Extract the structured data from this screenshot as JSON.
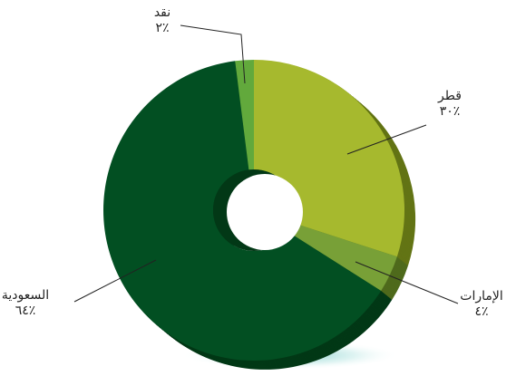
{
  "chart_data": {
    "type": "pie",
    "variant": "3d-donut",
    "categories": [
      "قطر",
      "الإمارات",
      "السعودية",
      "نقد"
    ],
    "values": [
      30,
      4,
      64,
      2
    ],
    "value_labels": [
      "٪٣٠",
      "٪٤",
      "٪٦٤",
      "٪٢"
    ],
    "colors": [
      "#a6b92e",
      "#78a037",
      "#024f22",
      "#62a93c"
    ],
    "side_colors": [
      "#637415",
      "#4f6a1c",
      "#023816",
      "#3f7524"
    ],
    "start_angle": "top",
    "direction": "clockwise",
    "legend": "none",
    "title": ""
  }
}
